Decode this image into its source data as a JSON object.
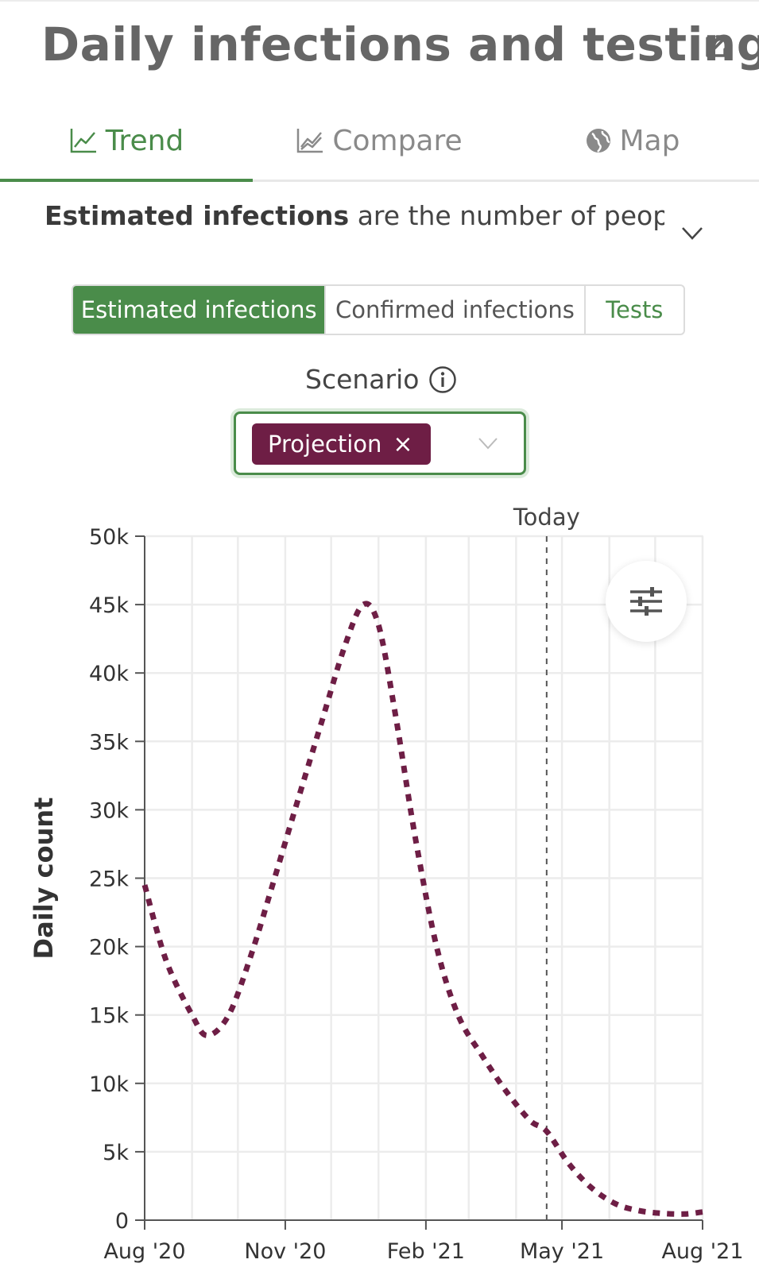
{
  "header": {
    "title": "Daily infections and testing",
    "external_link_icon": "external-link-icon"
  },
  "tabs": [
    {
      "label": "Trend",
      "icon": "trend-line-icon",
      "active": true
    },
    {
      "label": "Compare",
      "icon": "compare-chart-icon",
      "active": false
    },
    {
      "label": "Map",
      "icon": "globe-icon",
      "active": false
    }
  ],
  "description": {
    "bold": "Estimated infections",
    "rest": " are the number of peopl..."
  },
  "segments": [
    {
      "label": "Estimated infections",
      "active": true
    },
    {
      "label": "Confirmed infections",
      "active": false
    },
    {
      "label": "Tests",
      "active": false
    }
  ],
  "scenario": {
    "label": "Scenario",
    "chip": "Projection",
    "chip_remove": "×"
  },
  "colors": {
    "accent": "#4a8c4a",
    "series": "#6e1e45",
    "today_line": "#555555"
  },
  "chart_data": {
    "type": "line",
    "ylabel": "Daily count",
    "xlabel": "",
    "today_label": "Today",
    "today_date": "2021-04-21",
    "ylim": [
      0,
      50000
    ],
    "yticks": [
      0,
      5000,
      10000,
      15000,
      20000,
      25000,
      30000,
      35000,
      40000,
      45000,
      50000
    ],
    "ytick_labels": [
      "0",
      "5k",
      "10k",
      "15k",
      "20k",
      "25k",
      "30k",
      "35k",
      "40k",
      "45k",
      "50k"
    ],
    "xlim": [
      "2020-08-01",
      "2021-08-01"
    ],
    "xticks": [
      "2020-08-01",
      "2020-11-01",
      "2021-02-01",
      "2021-05-01",
      "2021-08-01"
    ],
    "xtick_labels": [
      "Aug '20",
      "Nov '20",
      "Feb '21",
      "May '21",
      "Aug '21"
    ],
    "series": [
      {
        "style": "dotted",
        "points": [
          {
            "x": "2020-08-01",
            "y": 24500
          },
          {
            "x": "2020-08-15",
            "y": 19000
          },
          {
            "x": "2020-09-01",
            "y": 15000
          },
          {
            "x": "2020-09-11",
            "y": 13500
          },
          {
            "x": "2020-09-25",
            "y": 15000
          },
          {
            "x": "2020-10-10",
            "y": 19500
          },
          {
            "x": "2020-10-25",
            "y": 25000
          },
          {
            "x": "2020-11-10",
            "y": 31000
          },
          {
            "x": "2020-11-25",
            "y": 36500
          },
          {
            "x": "2020-12-10",
            "y": 42000
          },
          {
            "x": "2020-12-22",
            "y": 45000
          },
          {
            "x": "2021-01-01",
            "y": 43500
          },
          {
            "x": "2021-01-12",
            "y": 37000
          },
          {
            "x": "2021-01-25",
            "y": 28000
          },
          {
            "x": "2021-02-08",
            "y": 20000
          },
          {
            "x": "2021-02-22",
            "y": 15000
          },
          {
            "x": "2021-03-10",
            "y": 12000
          },
          {
            "x": "2021-03-25",
            "y": 9500
          },
          {
            "x": "2021-04-10",
            "y": 7300
          },
          {
            "x": "2021-04-21",
            "y": 6500
          },
          {
            "x": "2021-05-05",
            "y": 4200
          },
          {
            "x": "2021-05-20",
            "y": 2400
          },
          {
            "x": "2021-06-05",
            "y": 1200
          },
          {
            "x": "2021-06-20",
            "y": 700
          },
          {
            "x": "2021-07-05",
            "y": 500
          },
          {
            "x": "2021-07-20",
            "y": 450
          },
          {
            "x": "2021-08-01",
            "y": 600
          }
        ]
      }
    ],
    "grid": true
  }
}
